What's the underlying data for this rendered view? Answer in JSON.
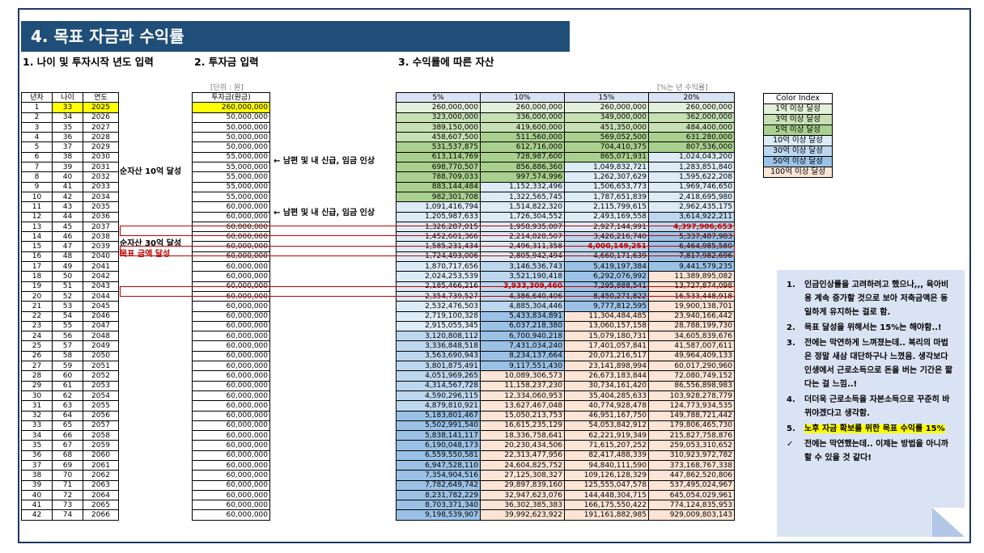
{
  "title": "4. 목표 자금과 수익률",
  "sections": {
    "s1": "1. 나이 및 투자시작 년도 입력",
    "s2": "2. 투자금 입력",
    "s3": "3. 수익률에 따른 자산"
  },
  "unit_label": "[단위 : 원]",
  "rate_label": "[%는 년 수익률]",
  "left_headers": [
    "년차",
    "나이",
    "연도"
  ],
  "invest_header": "투자금(원금)",
  "rate_headers": [
    "5%",
    "10%",
    "15%",
    "20%"
  ],
  "rows": [
    [
      "1",
      "33",
      "2025",
      "260,000,000",
      "260,000,000",
      "260,000,000",
      "260,000,000",
      "260,000,000"
    ],
    [
      "2",
      "34",
      "2026",
      "50,000,000",
      "323,000,000",
      "336,000,000",
      "349,000,000",
      "362,000,000"
    ],
    [
      "3",
      "35",
      "2027",
      "50,000,000",
      "389,150,000",
      "419,600,000",
      "451,350,000",
      "484,400,000"
    ],
    [
      "4",
      "36",
      "2028",
      "50,000,000",
      "458,607,500",
      "511,560,000",
      "569,052,500",
      "631,280,000"
    ],
    [
      "5",
      "37",
      "2029",
      "50,000,000",
      "531,537,875",
      "612,716,000",
      "704,410,375",
      "807,536,000"
    ],
    [
      "6",
      "38",
      "2030",
      "55,000,000",
      "613,114,769",
      "728,987,600",
      "865,071,931",
      "1,024,043,200"
    ],
    [
      "7",
      "39",
      "2031",
      "55,000,000",
      "698,770,507",
      "856,886,360",
      "1,049,832,721",
      "1,283,851,840"
    ],
    [
      "8",
      "40",
      "2032",
      "55,000,000",
      "788,709,033",
      "997,574,996",
      "1,262,307,629",
      "1,595,622,208"
    ],
    [
      "9",
      "41",
      "2033",
      "55,000,000",
      "883,144,484",
      "1,152,332,496",
      "1,506,653,773",
      "1,969,746,650"
    ],
    [
      "10",
      "42",
      "2034",
      "55,000,000",
      "982,301,708",
      "1,322,565,745",
      "1,787,651,839",
      "2,418,695,980"
    ],
    [
      "11",
      "43",
      "2035",
      "60,000,000",
      "1,091,416,794",
      "1,514,822,320",
      "2,115,799,615",
      "2,962,435,175"
    ],
    [
      "12",
      "44",
      "2036",
      "60,000,000",
      "1,205,987,633",
      "1,726,304,552",
      "2,493,169,558",
      "3,614,922,211"
    ],
    [
      "13",
      "45",
      "2037",
      "60,000,000",
      "1,326,287,015",
      "1,958,935,007",
      "2,927,144,991",
      "4,397,906,653"
    ],
    [
      "14",
      "46",
      "2038",
      "60,000,000",
      "1,452,601,366",
      "2,214,828,507",
      "3,426,216,740",
      "5,337,487,983"
    ],
    [
      "15",
      "47",
      "2039",
      "60,000,000",
      "1,585,231,434",
      "2,496,311,358",
      "4,000,149,251",
      "6,464,985,580"
    ],
    [
      "16",
      "48",
      "2040",
      "60,000,000",
      "1,724,493,006",
      "2,805,942,494",
      "4,660,171,639",
      "7,817,982,696"
    ],
    [
      "17",
      "49",
      "2041",
      "60,000,000",
      "1,870,717,656",
      "3,146,536,743",
      "5,419,197,384",
      "9,441,579,235"
    ],
    [
      "18",
      "50",
      "2042",
      "60,000,000",
      "2,024,253,539",
      "3,521,190,418",
      "6,292,076,992",
      "11,389,895,082"
    ],
    [
      "19",
      "51",
      "2043",
      "60,000,000",
      "2,185,466,216",
      "3,933,309,460",
      "7,295,888,541",
      "13,727,874,098"
    ],
    [
      "20",
      "52",
      "2044",
      "60,000,000",
      "2,354,739,527",
      "4,386,640,406",
      "8,450,271,822",
      "16,533,448,918"
    ],
    [
      "21",
      "53",
      "2045",
      "60,000,000",
      "2,532,476,503",
      "4,885,304,446",
      "9,777,812,595",
      "19,900,138,701"
    ],
    [
      "22",
      "54",
      "2046",
      "60,000,000",
      "2,719,100,328",
      "5,433,834,891",
      "11,304,484,485",
      "23,940,166,442"
    ],
    [
      "23",
      "55",
      "2047",
      "60,000,000",
      "2,915,055,345",
      "6,037,218,380",
      "13,060,157,158",
      "28,788,199,730"
    ],
    [
      "24",
      "56",
      "2048",
      "60,000,000",
      "3,120,808,112",
      "6,700,940,218",
      "15,079,180,731",
      "34,605,839,676"
    ],
    [
      "25",
      "57",
      "2049",
      "60,000,000",
      "3,336,848,518",
      "7,431,034,240",
      "17,401,057,841",
      "41,587,007,611"
    ],
    [
      "26",
      "58",
      "2050",
      "60,000,000",
      "3,563,690,943",
      "8,234,137,664",
      "20,071,216,517",
      "49,964,409,133"
    ],
    [
      "27",
      "59",
      "2051",
      "60,000,000",
      "3,801,875,491",
      "9,117,551,430",
      "23,141,898,994",
      "60,017,290,960"
    ],
    [
      "28",
      "60",
      "2052",
      "60,000,000",
      "4,051,969,265",
      "10,089,306,573",
      "26,673,183,844",
      "72,080,749,152"
    ],
    [
      "29",
      "61",
      "2053",
      "60,000,000",
      "4,314,567,728",
      "11,158,237,230",
      "30,734,161,420",
      "86,556,898,983"
    ],
    [
      "30",
      "62",
      "2054",
      "60,000,000",
      "4,590,296,115",
      "12,334,060,953",
      "35,404,285,633",
      "103,928,278,779"
    ],
    [
      "31",
      "63",
      "2055",
      "60,000,000",
      "4,879,810,921",
      "13,627,467,048",
      "40,774,928,478",
      "124,773,934,535"
    ],
    [
      "32",
      "64",
      "2056",
      "60,000,000",
      "5,183,801,467",
      "15,050,213,753",
      "46,951,167,750",
      "149,788,721,442"
    ],
    [
      "33",
      "65",
      "2057",
      "60,000,000",
      "5,502,991,540",
      "16,615,235,129",
      "54,053,842,912",
      "179,806,465,730"
    ],
    [
      "34",
      "66",
      "2058",
      "60,000,000",
      "5,838,141,117",
      "18,336,758,641",
      "62,221,919,349",
      "215,827,758,876"
    ],
    [
      "35",
      "67",
      "2059",
      "60,000,000",
      "6,190,048,173",
      "20,230,434,506",
      "71,615,207,252",
      "259,053,310,652"
    ],
    [
      "36",
      "68",
      "2060",
      "60,000,000",
      "6,559,550,581",
      "22,313,477,956",
      "82,417,488,339",
      "310,923,972,782"
    ],
    [
      "37",
      "69",
      "2061",
      "60,000,000",
      "6,947,528,110",
      "24,604,825,752",
      "94,840,111,590",
      "373,168,767,338"
    ],
    [
      "38",
      "70",
      "2062",
      "60,000,000",
      "7,354,904,516",
      "27,125,308,327",
      "109,126,128,329",
      "447,862,520,806"
    ],
    [
      "39",
      "71",
      "2063",
      "60,000,000",
      "7,782,649,742",
      "29,897,839,160",
      "125,555,047,578",
      "537,495,024,967"
    ],
    [
      "40",
      "72",
      "2064",
      "60,000,000",
      "8,231,782,229",
      "32,947,623,076",
      "144,448,304,715",
      "645,054,029,961"
    ],
    [
      "41",
      "73",
      "2065",
      "60,000,000",
      "8,703,371,340",
      "36,302,385,383",
      "166,175,550,422",
      "774,124,835,953"
    ],
    [
      "42",
      "74",
      "2066",
      "60,000,000",
      "9,198,539,907",
      "39,992,623,922",
      "191,161,882,985",
      "929,009,803,143"
    ]
  ],
  "notes": {
    "raise1": "← 남편 및 내 신급, 임금 인상",
    "raise2": "← 남편 및 내 신급, 임금 인상",
    "asset10": "순자산 10억 달성",
    "asset30": "순자산 30억 달성",
    "goal": "목표 금액 달성"
  },
  "color_index": {
    "title": "Color Index",
    "items": [
      {
        "label": "1억 이상 달성",
        "color": "#e2efda"
      },
      {
        "label": "3억 이상 달성",
        "color": "#c6e0b4"
      },
      {
        "label": "5억 이상 달성",
        "color": "#a9d08e"
      },
      {
        "label": "10억 이상 달성",
        "color": "#ddebf7"
      },
      {
        "label": "30억 이상 달성",
        "color": "#bdd7ee"
      },
      {
        "label": "50억 이상 달성",
        "color": "#9bc2e6"
      },
      {
        "label": "100억 이상 달성",
        "color": "#fce4d6"
      }
    ]
  },
  "memo": [
    {
      "num": "1.",
      "text": "인금인상률을 고려하려고 했으나,,, 육아비용 계속 증가할 것으로 보아 저축금액은 동일하게 유지하는 걸로 함."
    },
    {
      "num": "2.",
      "text": "목표 달성을 위해서는 15%는 해야함..!"
    },
    {
      "num": "3.",
      "text": "전에는 막연하게 느껴졌는데.. 복리의 마법은 정말 새삼 대단하구나 느꼈음. 생각보다 인생에서 근로소득으로 돈을 버는 기간은 짧다는 걸 느낌..!"
    },
    {
      "num": "4.",
      "text": "더더욱 근로소득을 자본소득으로 꾸준히 바뀌야겠다고 생각함."
    },
    {
      "num": "5.",
      "text": "노후 자금 확보를 위한 목표 수익률 15%"
    },
    {
      "num": "✓",
      "text": "전에는 막연했는데.. 이제는 방법을 아니까 할 수 있을 것 같다!"
    }
  ],
  "colors": {
    "title_bg": "#1f4e79",
    "highlight_red": "#c00000",
    "yellow": "#ffff00"
  }
}
